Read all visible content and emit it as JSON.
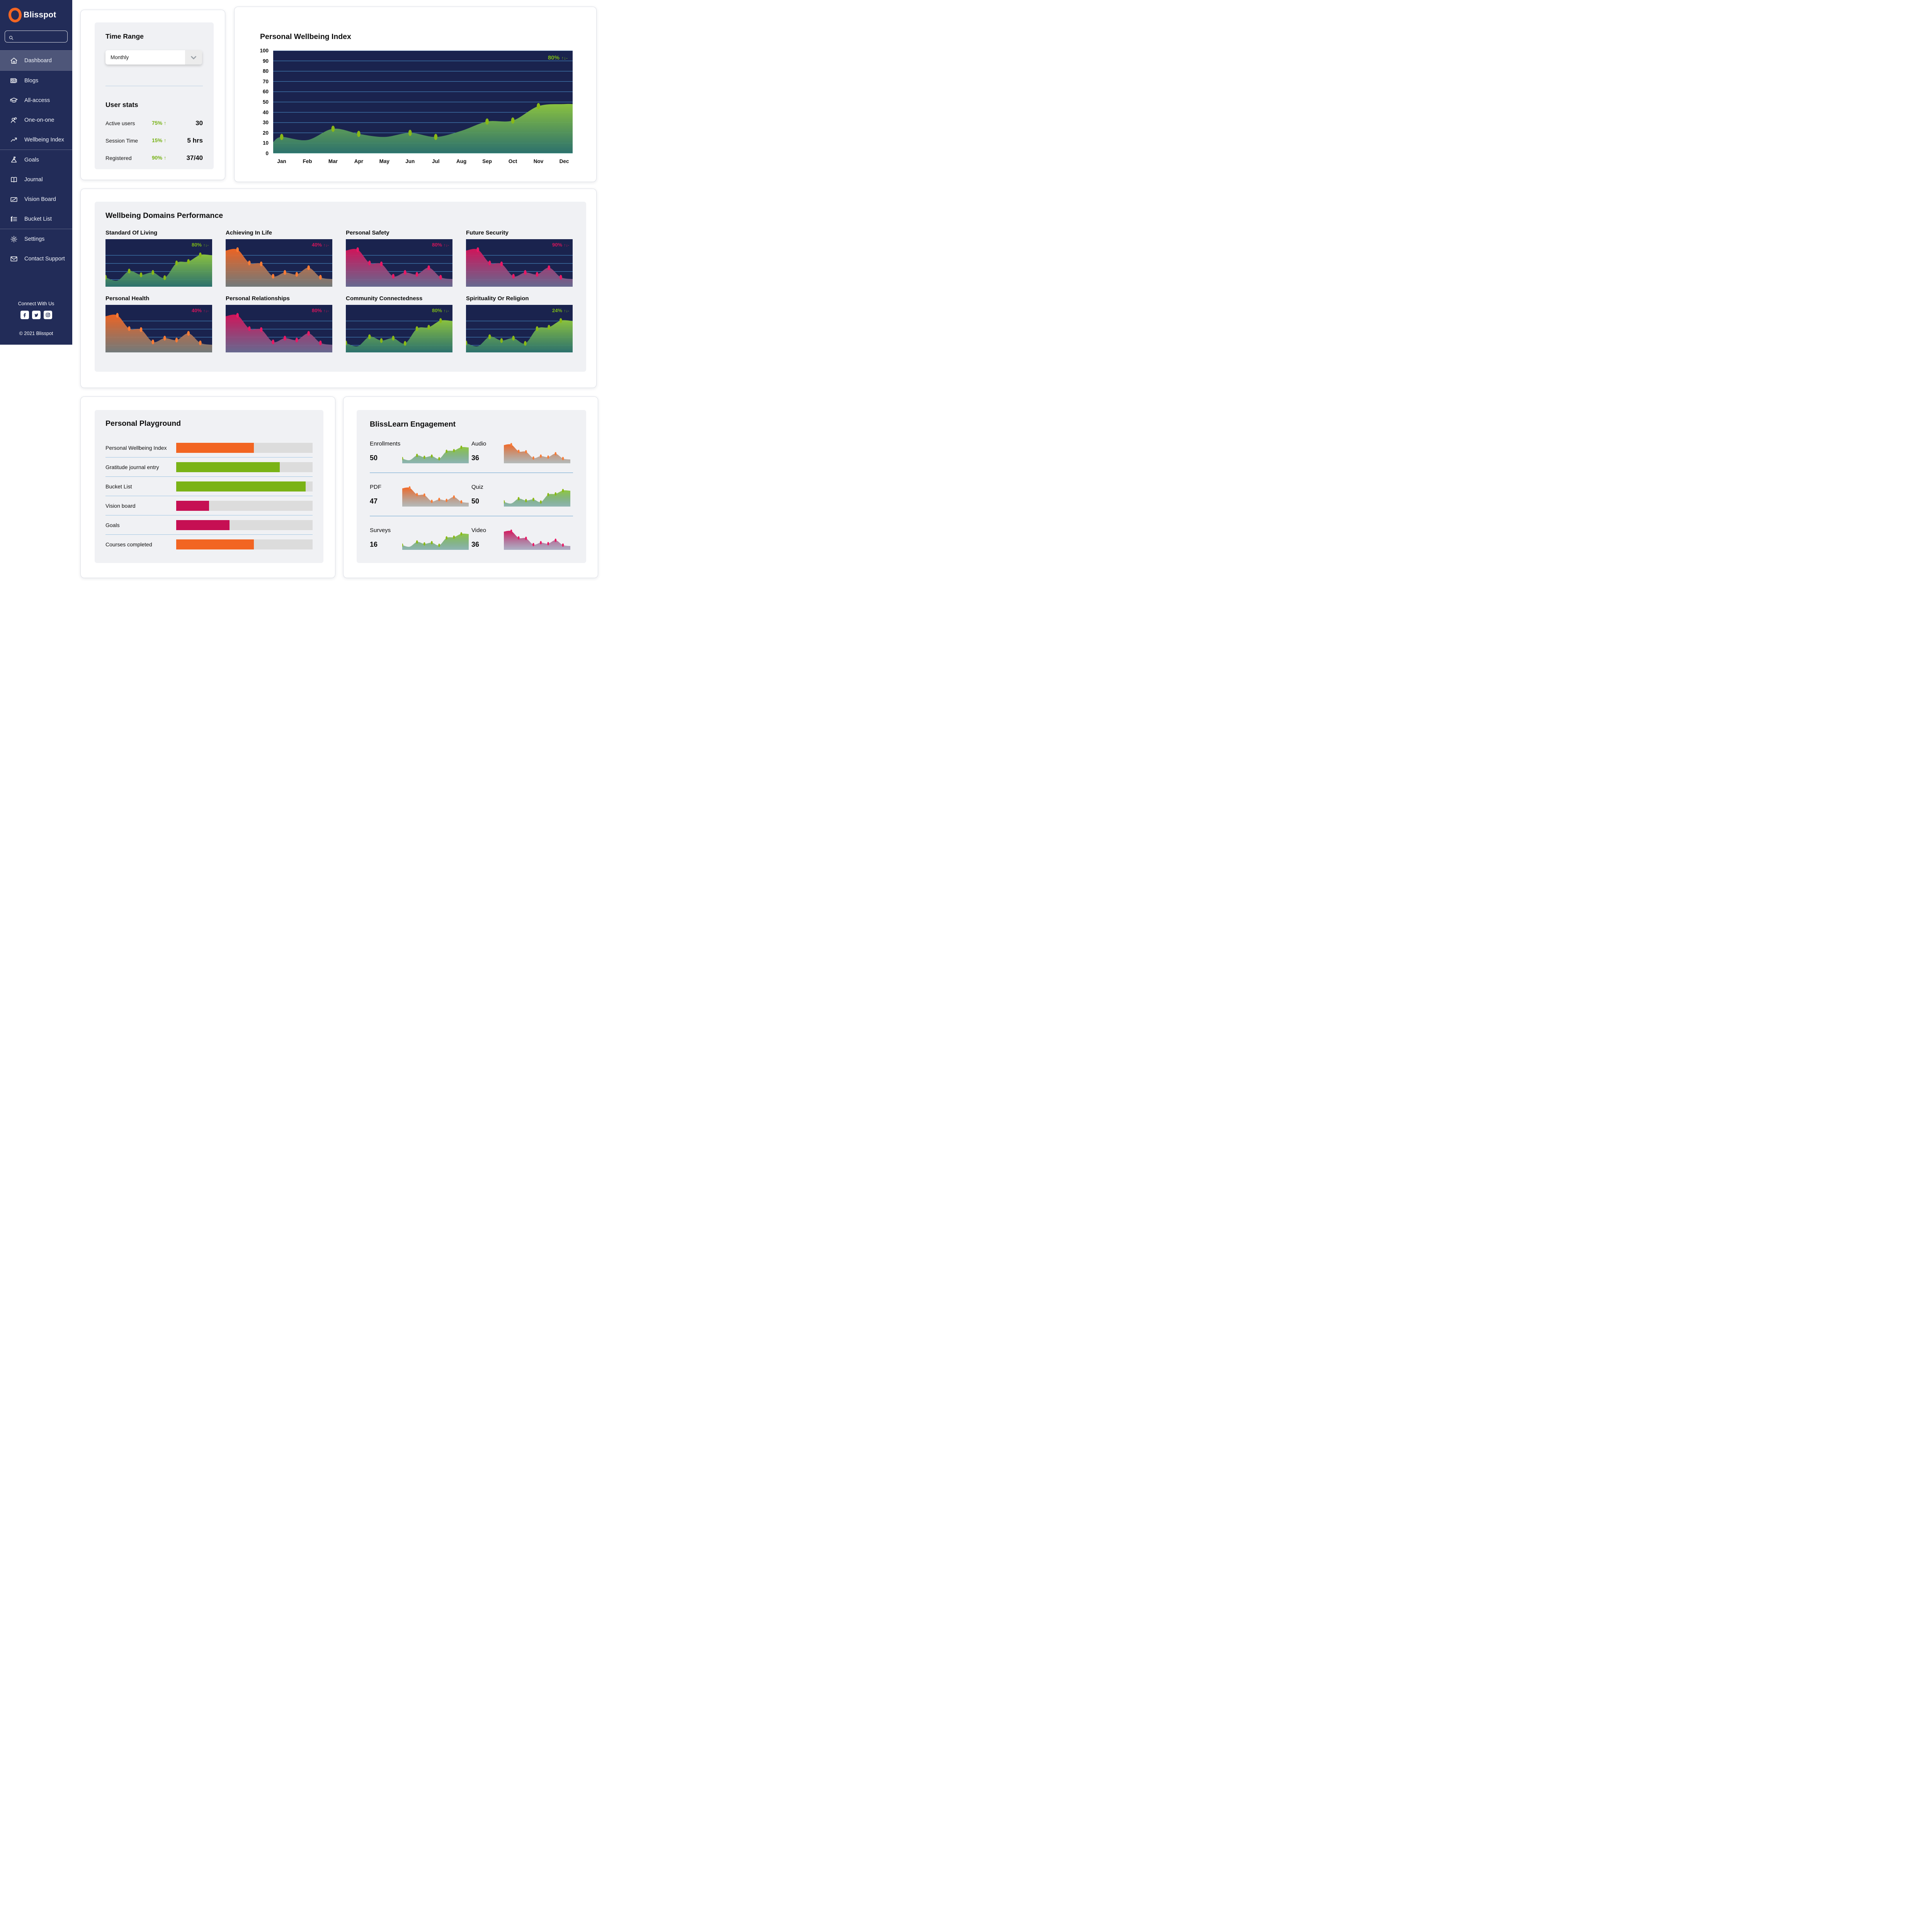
{
  "brand": {
    "name": "Blisspot"
  },
  "sidebar": {
    "search_placeholder": "",
    "items": [
      {
        "id": "dashboard",
        "label": "Dashboard",
        "icon": "home",
        "active": true,
        "group_end": true
      },
      {
        "id": "blogs",
        "label": "Blogs",
        "icon": "newspaper"
      },
      {
        "id": "all-access",
        "label": "All-access",
        "icon": "graduation-cap"
      },
      {
        "id": "one-on-one",
        "label": "One-on-one",
        "icon": "person-chat"
      },
      {
        "id": "wellbeing-index",
        "label": "Wellbeing Index",
        "icon": "trend-up",
        "group_end": true
      },
      {
        "id": "goals",
        "label": "Goals",
        "icon": "mountain-flag"
      },
      {
        "id": "journal",
        "label": "Journal",
        "icon": "book"
      },
      {
        "id": "vision-board",
        "label": "Vision Board",
        "icon": "pencil-board"
      },
      {
        "id": "bucket-list",
        "label": "Bucket List",
        "icon": "checklist",
        "group_end": true
      },
      {
        "id": "settings",
        "label": "Settings",
        "icon": "gear"
      },
      {
        "id": "contact-support",
        "label": "Contact Support",
        "icon": "envelope"
      }
    ],
    "connect_label": "Connect With Us",
    "social": [
      {
        "id": "facebook"
      },
      {
        "id": "twitter"
      },
      {
        "id": "instagram"
      }
    ],
    "copyright": "© 2021 Blisspot"
  },
  "time_range": {
    "title": "Time Range",
    "selected": "Monthly"
  },
  "user_stats": {
    "title": "User stats",
    "rows": [
      {
        "label": "Active users",
        "delta": "75% ↑",
        "value": "30"
      },
      {
        "label": "Session Time",
        "delta": "15% ↑",
        "value": "5 hrs"
      },
      {
        "label": "Registered",
        "delta": "90% ↑",
        "value": "37/40"
      }
    ]
  },
  "wellbeing_chart": {
    "type": "area",
    "title": "Personal Wellbeing Index",
    "badge": "80%",
    "arrows": "↑↓-",
    "months": [
      "Jan",
      "Feb",
      "Mar",
      "Apr",
      "May",
      "Jun",
      "Jul",
      "Aug",
      "Sep",
      "Oct",
      "Nov",
      "Dec"
    ],
    "values": [
      16,
      13,
      24,
      19,
      16,
      20,
      16,
      22,
      31,
      32,
      46,
      48
    ],
    "dot_months": [
      0,
      2,
      3,
      5,
      6,
      8,
      9,
      10
    ],
    "ymax": 100,
    "ystep": 10
  },
  "domains": {
    "title": "Wellbeing Domains Performance",
    "charts": [
      {
        "name": "Standard Of Living",
        "badge": "80%",
        "arrows": "↑↓-",
        "tone": "green",
        "trend": "up",
        "badge_color": "green"
      },
      {
        "name": "Achieving In Life",
        "badge": "40%",
        "arrows": "↑↓-",
        "tone": "orange",
        "trend": "down",
        "badge_color": "pink"
      },
      {
        "name": "Personal Safety",
        "badge": "80%",
        "arrows": "↑↓-",
        "tone": "crimson",
        "trend": "down",
        "badge_color": "pink"
      },
      {
        "name": "Future Security",
        "badge": "90%",
        "arrows": "↑↓-",
        "tone": "crimson",
        "trend": "down",
        "badge_color": "pink"
      },
      {
        "name": "Personal Health",
        "badge": "40%",
        "arrows": "↑↓-",
        "tone": "orange",
        "trend": "down",
        "badge_color": "pink"
      },
      {
        "name": "Personal Relationships",
        "badge": "80%",
        "arrows": "↑↓-",
        "tone": "crimson",
        "trend": "down",
        "badge_color": "pink"
      },
      {
        "name": "Community Connectedness",
        "badge": "80%",
        "arrows": "↑↓-",
        "tone": "green",
        "trend": "up",
        "badge_color": "green"
      },
      {
        "name": "Spirituality Or Religion",
        "badge": "24%",
        "arrows": "↑↓-",
        "tone": "green",
        "trend": "up",
        "badge_color": "green"
      }
    ],
    "series_up": [
      20,
      13,
      33,
      25,
      30,
      19,
      50,
      53,
      67,
      66
    ],
    "series_down": [
      76,
      78,
      50,
      48,
      22,
      30,
      26,
      40,
      20,
      16
    ],
    "dots_up": [
      0,
      2,
      3,
      4,
      5,
      6,
      7,
      8
    ],
    "dots_down": [
      1,
      2,
      3,
      4,
      5,
      6,
      7,
      8
    ]
  },
  "playground": {
    "title": "Personal Playground",
    "bars": [
      {
        "label": "Personal Wellbeing Index",
        "pct": 57,
        "tone": "orange"
      },
      {
        "label": "Gratitude journal entry",
        "pct": 76,
        "tone": "green"
      },
      {
        "label": "Bucket List",
        "pct": 95,
        "tone": "green"
      },
      {
        "label": "Vision board",
        "pct": 24,
        "tone": "crimson"
      },
      {
        "label": "Goals",
        "pct": 39,
        "tone": "crimson"
      },
      {
        "label": "Courses completed",
        "pct": 57,
        "tone": "orange"
      }
    ]
  },
  "blisslearn": {
    "title": "BlissLearn Engagement",
    "cells": [
      {
        "label": "Enrollments",
        "value": "50",
        "tone": "green",
        "trend": "up"
      },
      {
        "label": "Audio",
        "value": "36",
        "tone": "orange",
        "trend": "down"
      },
      {
        "label": "PDF",
        "value": "47",
        "tone": "orange",
        "trend": "down"
      },
      {
        "label": "Quiz",
        "value": "50",
        "tone": "green",
        "trend": "up"
      },
      {
        "label": "Surveys",
        "value": "16",
        "tone": "green",
        "trend": "up"
      },
      {
        "label": "Video",
        "value": "36",
        "tone": "crimson",
        "trend": "down"
      }
    ]
  },
  "colors": {
    "sidebar_bg": "#222c58",
    "chart_bg": "#1a234e",
    "gridline": "#4f9bd5",
    "baseline": "#7fd0b8",
    "divider_blue": "#5b9fd4",
    "track_gray": "#dcdcdc",
    "badge_pink": "#d4145a",
    "badge_green": "#7cb916",
    "stat_green": "#76b114",
    "logo_orange": "#f26522",
    "tones": {
      "green": {
        "top": "#8dc63f",
        "bottom": "#2f7a70",
        "dot": "#8ab917",
        "bar": "#7ab317"
      },
      "orange": {
        "top": "#f26522",
        "bottom": "#7c837f",
        "dot": "#f97b35",
        "bar": "#f26522"
      },
      "crimson": {
        "top": "#d4145a",
        "bottom": "#6f7096",
        "dot": "#e81965",
        "bar": "#c60f53"
      }
    }
  }
}
